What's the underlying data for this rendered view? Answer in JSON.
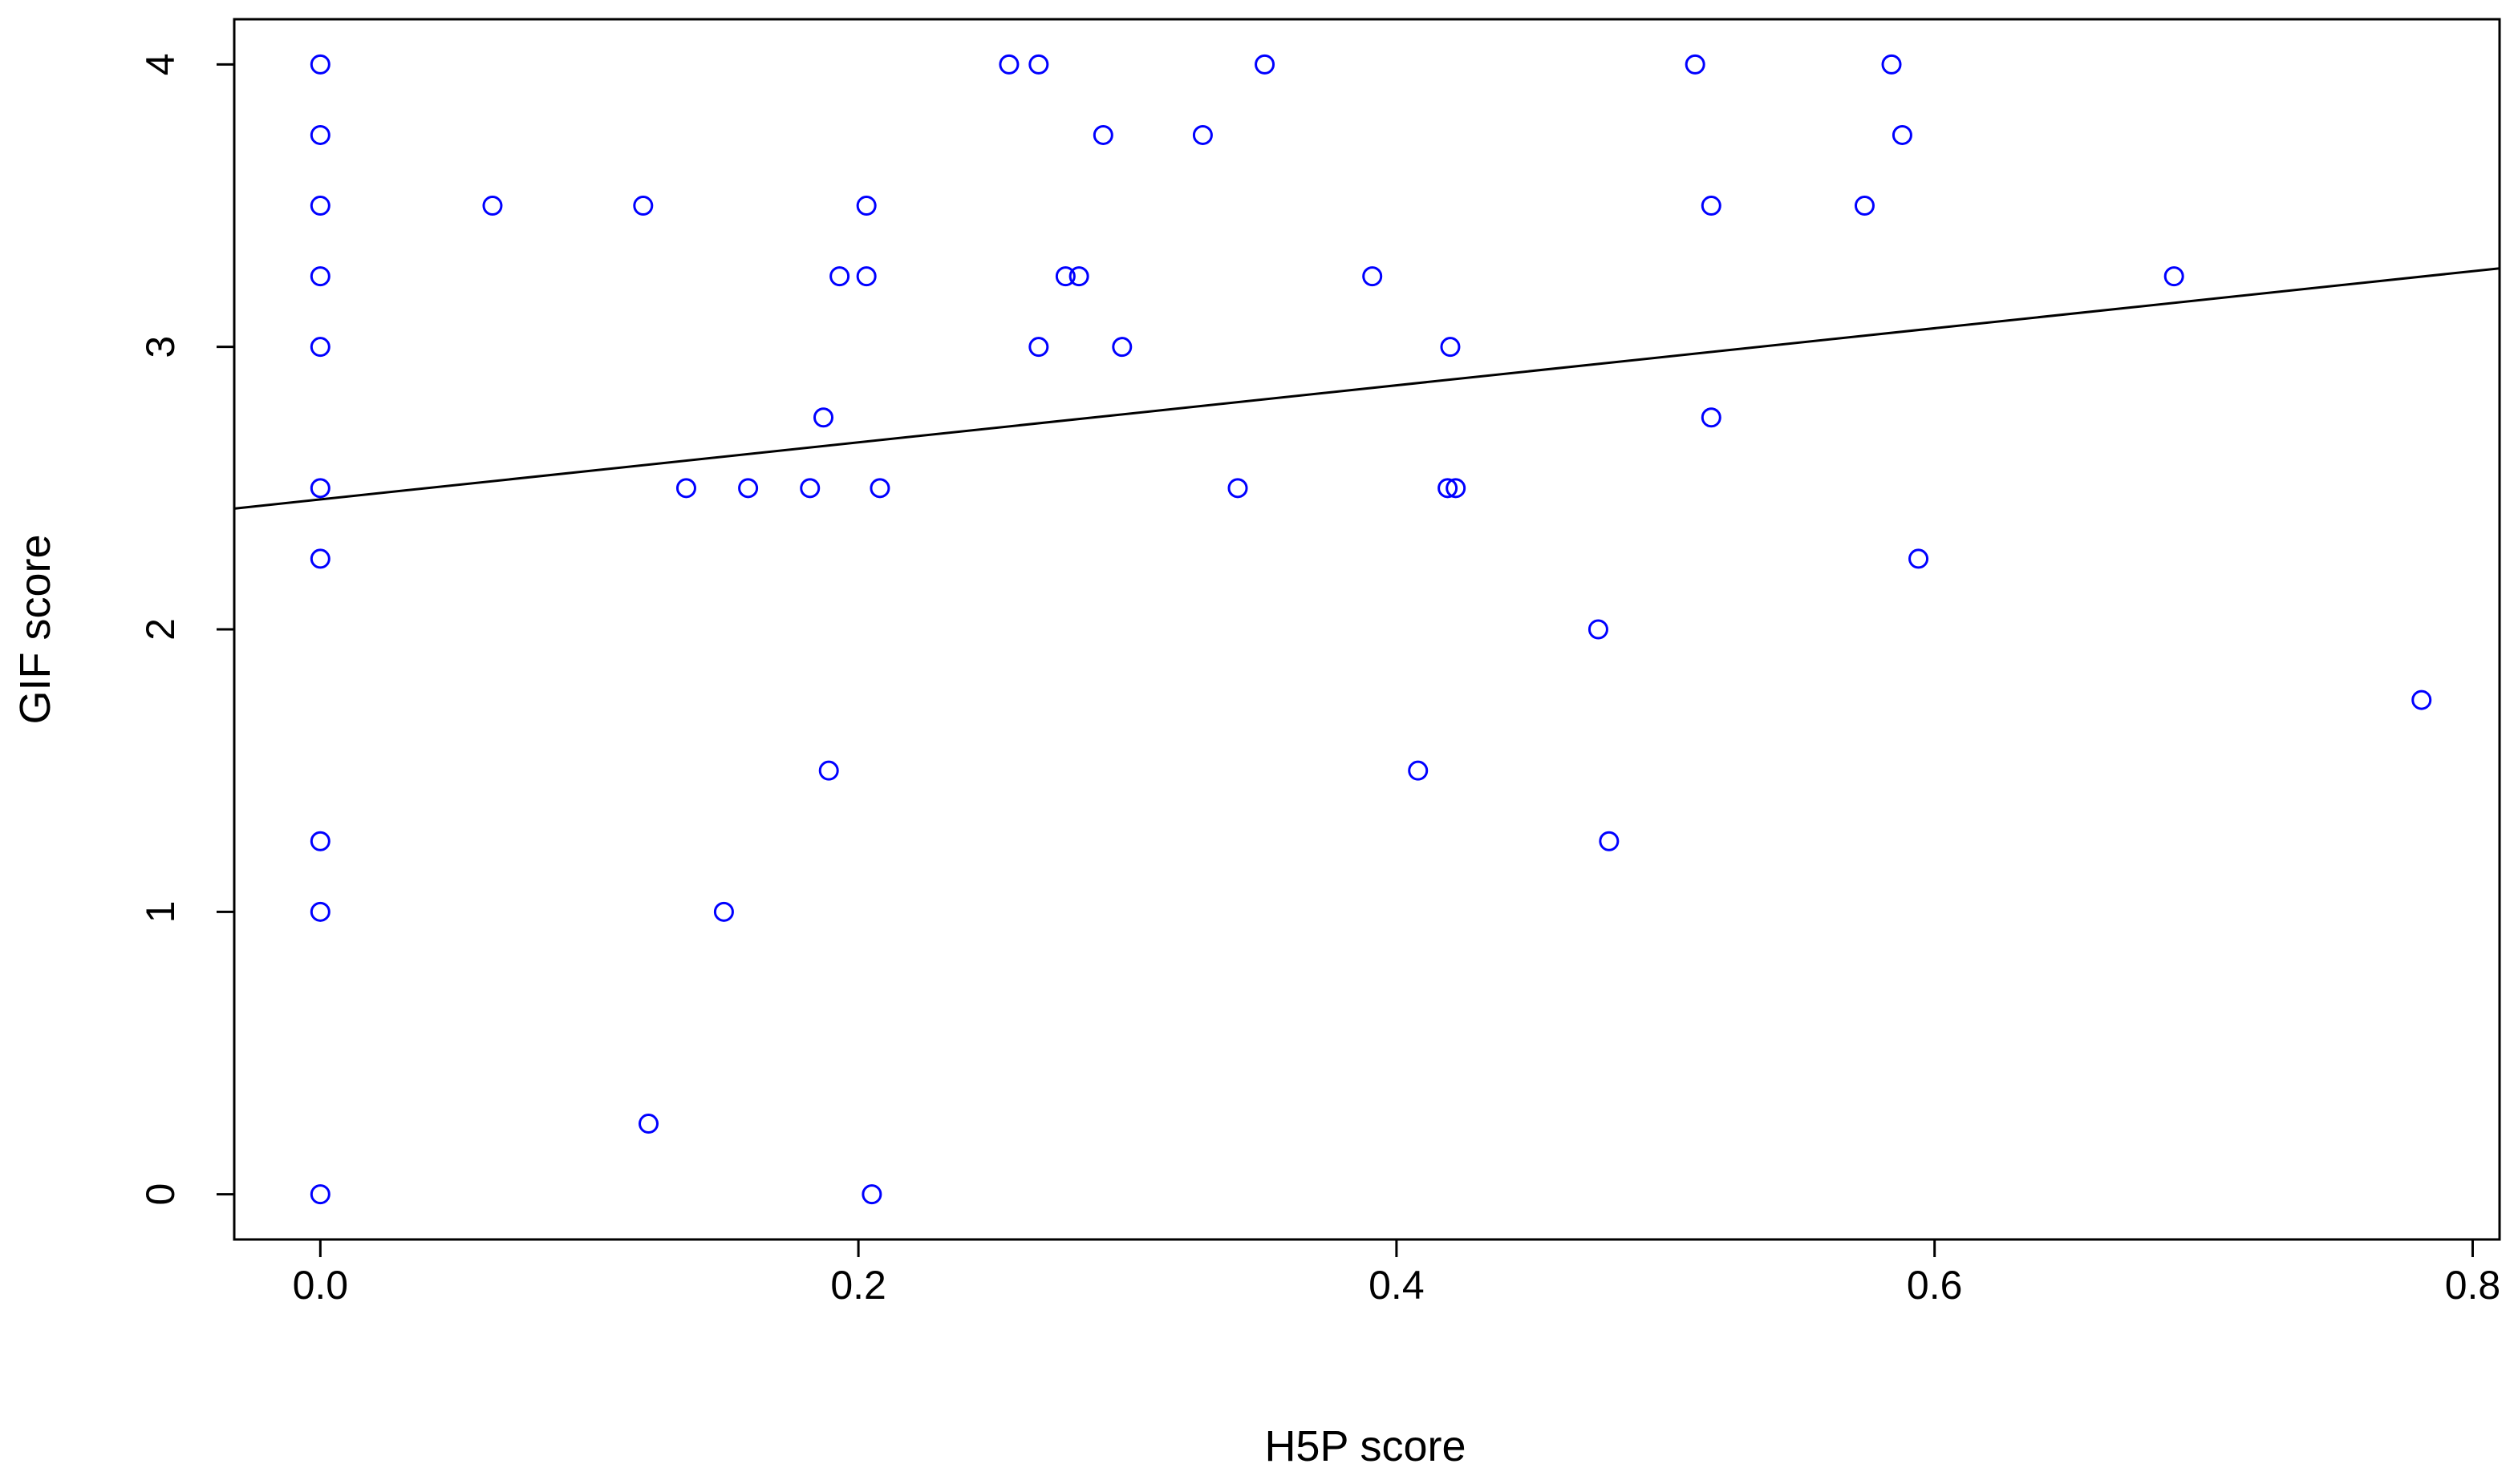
{
  "chart_data": {
    "type": "scatter",
    "xlabel": "H5P score",
    "ylabel": "GIF score",
    "xlim": [
      -0.032,
      0.81
    ],
    "ylim": [
      -0.16,
      4.16
    ],
    "x_ticks": [
      0.0,
      0.2,
      0.4,
      0.6,
      0.8
    ],
    "x_tick_labels": [
      "0.0",
      "0.2",
      "0.4",
      "0.6",
      "0.8"
    ],
    "y_ticks": [
      0,
      1,
      2,
      3,
      4
    ],
    "y_tick_labels": [
      "0",
      "1",
      "2",
      "3",
      "4"
    ],
    "grid": false,
    "legend": "none",
    "series": [
      {
        "marker": "open-circle",
        "color": "#0000ff",
        "points": [
          [
            0.0,
            4.0
          ],
          [
            0.0,
            3.75
          ],
          [
            0.0,
            3.5
          ],
          [
            0.0,
            3.25
          ],
          [
            0.0,
            3.0
          ],
          [
            0.0,
            2.5
          ],
          [
            0.0,
            2.25
          ],
          [
            0.0,
            1.25
          ],
          [
            0.0,
            1.0
          ],
          [
            0.0,
            0.0
          ],
          [
            0.064,
            3.5
          ],
          [
            0.12,
            3.5
          ],
          [
            0.122,
            0.25
          ],
          [
            0.136,
            2.5
          ],
          [
            0.15,
            1.0
          ],
          [
            0.159,
            2.5
          ],
          [
            0.182,
            2.5
          ],
          [
            0.187,
            2.75
          ],
          [
            0.189,
            1.5
          ],
          [
            0.193,
            3.25
          ],
          [
            0.203,
            3.5
          ],
          [
            0.203,
            3.25
          ],
          [
            0.205,
            0.0
          ],
          [
            0.208,
            2.5
          ],
          [
            0.256,
            4.0
          ],
          [
            0.267,
            4.0
          ],
          [
            0.267,
            3.0
          ],
          [
            0.277,
            3.25
          ],
          [
            0.282,
            3.25
          ],
          [
            0.291,
            3.75
          ],
          [
            0.298,
            3.0
          ],
          [
            0.328,
            3.75
          ],
          [
            0.341,
            2.5
          ],
          [
            0.351,
            4.0
          ],
          [
            0.391,
            3.25
          ],
          [
            0.408,
            1.5
          ],
          [
            0.419,
            2.5
          ],
          [
            0.42,
            3.0
          ],
          [
            0.422,
            2.5
          ],
          [
            0.475,
            2.0
          ],
          [
            0.479,
            1.25
          ],
          [
            0.511,
            4.0
          ],
          [
            0.517,
            3.5
          ],
          [
            0.517,
            2.75
          ],
          [
            0.574,
            3.5
          ],
          [
            0.584,
            4.0
          ],
          [
            0.588,
            3.75
          ],
          [
            0.594,
            2.25
          ],
          [
            0.689,
            3.25
          ],
          [
            0.781,
            1.75
          ]
        ]
      }
    ],
    "fit_line": {
      "type": "linear",
      "intercept": 2.46,
      "slope": 1.01,
      "color": "#000000"
    }
  }
}
